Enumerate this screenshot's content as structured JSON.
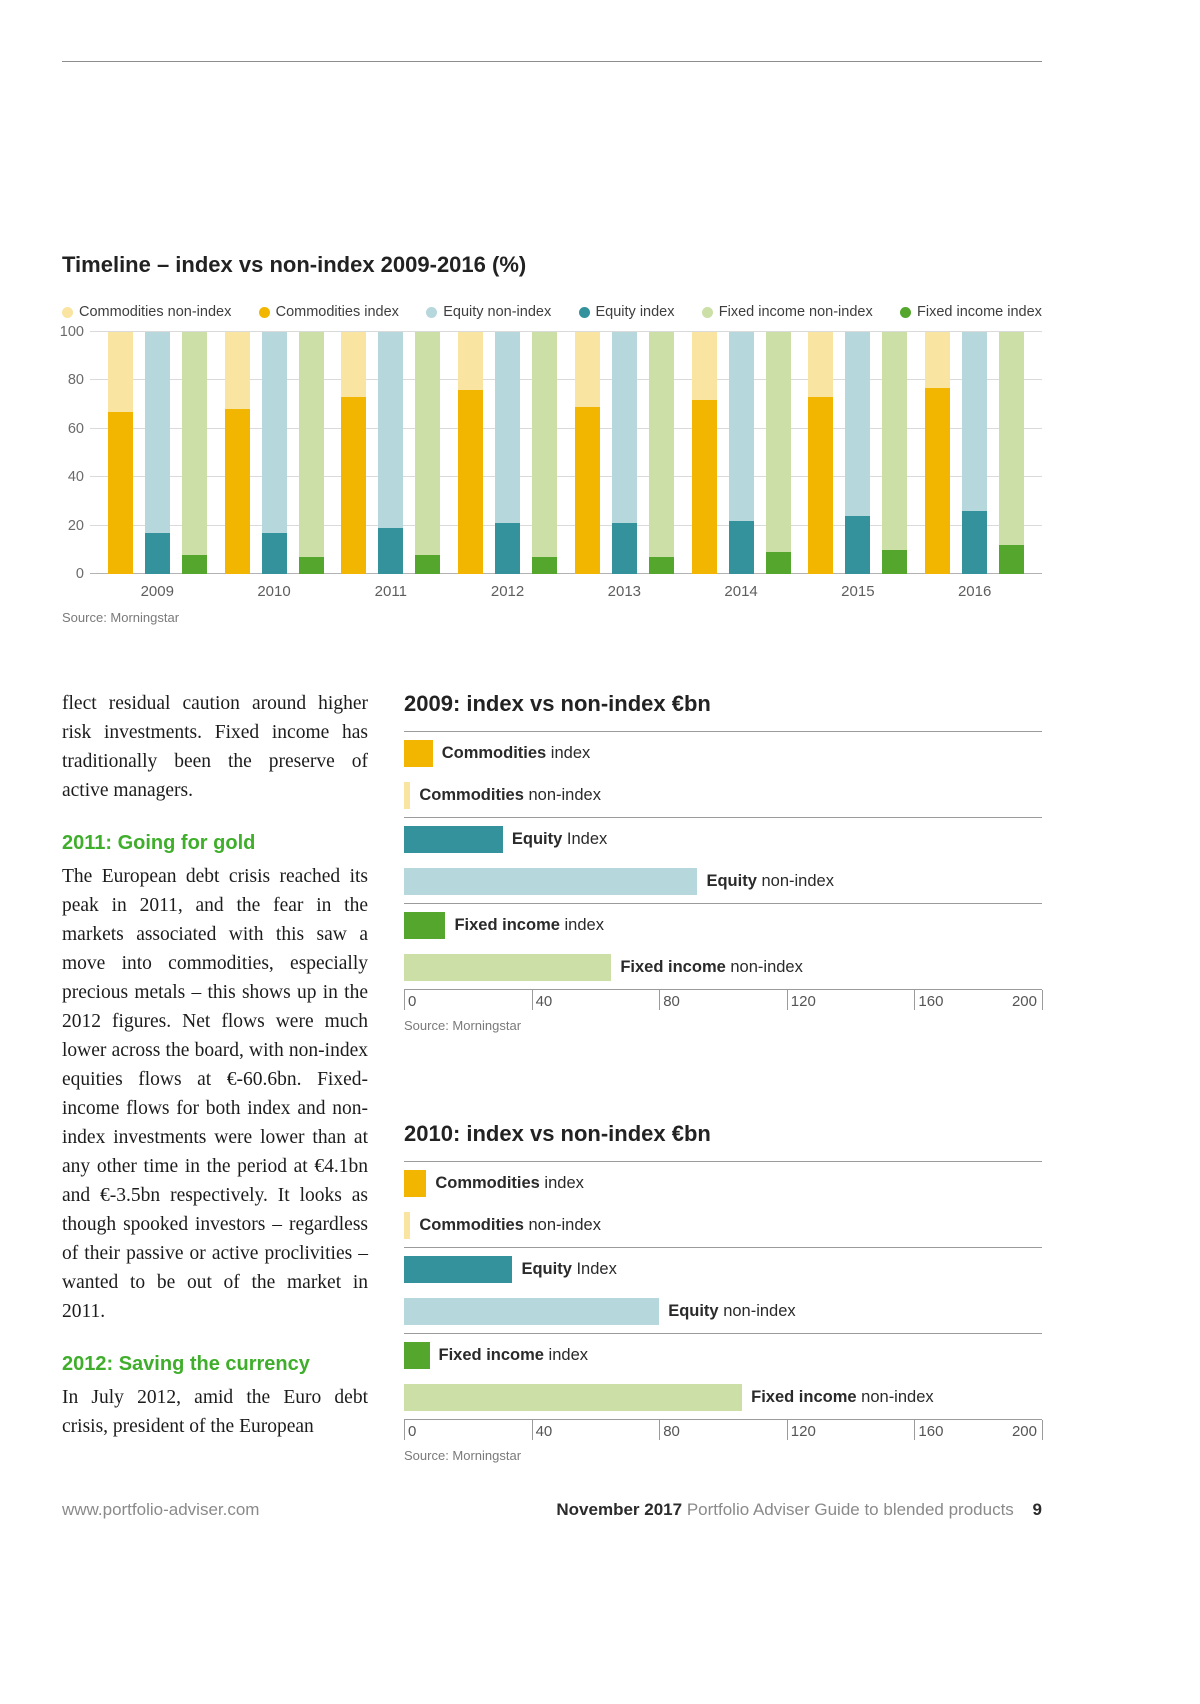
{
  "colors": {
    "commodities_nonindex": "#FAE4A1",
    "commodities_index": "#F2B600",
    "equity_nonindex": "#B6D7DB",
    "equity_index": "#33929B",
    "fixed_income_nonindex": "#CBDFA7",
    "fixed_income_index": "#55A62D",
    "heading_green": "#3FAE2B"
  },
  "timeline_section": {
    "title": "Timeline – index vs non-index 2009-2016 (%)",
    "source": "Source: Morningstar",
    "legend": [
      {
        "label": "Commodities non-index",
        "color_key": "commodities_nonindex"
      },
      {
        "label": "Commodities index",
        "color_key": "commodities_index"
      },
      {
        "label": "Equity non-index",
        "color_key": "equity_nonindex"
      },
      {
        "label": "Equity index",
        "color_key": "equity_index"
      },
      {
        "label": "Fixed income non-index",
        "color_key": "fixed_income_nonindex"
      },
      {
        "label": "Fixed income index",
        "color_key": "fixed_income_index"
      }
    ]
  },
  "article": {
    "intro_paragraph": "flect residual caution around higher risk investments. Fixed income has traditionally been the preserve of active managers.",
    "sections": [
      {
        "heading": "2011: Going for gold",
        "body": "The European debt crisis reached its peak in 2011, and the fear in the markets associated with this saw a move into commodities, especially precious metals – this shows up in the 2012 figures. Net flows were much lower across the board, with non-index equities flows at €-60.6bn. Fixed-income flows for both index and non-index investments were lower than at any other time in the period at €4.1bn and €-3.5bn respectively. It looks as though spooked investors – regardless of their passive or active proclivities – wanted to be out of the market in 2011."
      },
      {
        "heading": "2012: Saving the currency",
        "body": "In July 2012, amid the Euro debt crisis, president of the European"
      }
    ]
  },
  "footer": {
    "website": "www.portfolio-adviser.com",
    "issue": "November 2017",
    "publication": "Portfolio Adviser Guide to blended products",
    "page_number": "9"
  },
  "chart_data": [
    {
      "type": "bar",
      "variant": "stacked-100pct-grouped",
      "title": "Timeline – index vs non-index 2009-2016 (%)",
      "source": "Source: Morningstar",
      "categories": [
        "2009",
        "2010",
        "2011",
        "2012",
        "2013",
        "2014",
        "2015",
        "2016"
      ],
      "ylim": [
        0,
        100
      ],
      "y_ticks": [
        100,
        80,
        60,
        40,
        20,
        0
      ],
      "grid": true,
      "legend_position": "top",
      "groups": [
        {
          "name": "Commodities",
          "slug": "commodities",
          "index_series": "Commodities index",
          "nonindex_series": "Commodities non-index",
          "index_color_key": "commodities_index",
          "nonindex_color_key": "commodities_nonindex",
          "index_values": [
            67,
            68,
            73,
            76,
            69,
            72,
            73,
            77
          ],
          "nonindex_values": [
            33,
            32,
            27,
            24,
            31,
            28,
            27,
            23
          ]
        },
        {
          "name": "Equity",
          "slug": "equity",
          "index_series": "Equity index",
          "nonindex_series": "Equity non-index",
          "index_color_key": "equity_index",
          "nonindex_color_key": "equity_nonindex",
          "index_values": [
            17,
            17,
            19,
            21,
            21,
            22,
            24,
            26
          ],
          "nonindex_values": [
            83,
            83,
            81,
            79,
            79,
            78,
            76,
            74
          ]
        },
        {
          "name": "Fixed income",
          "slug": "fixed-income",
          "index_series": "Fixed income index",
          "nonindex_series": "Fixed income non-index",
          "index_color_key": "fixed_income_index",
          "nonindex_color_key": "fixed_income_nonindex",
          "index_values": [
            8,
            7,
            8,
            7,
            7,
            9,
            10,
            12
          ],
          "nonindex_values": [
            92,
            93,
            92,
            93,
            93,
            91,
            90,
            88
          ]
        }
      ]
    },
    {
      "type": "bar",
      "variant": "horizontal",
      "title": "2009: index vs non-index €bn",
      "source": "Source: Morningstar",
      "unit": "€bn",
      "xlim": [
        0,
        200
      ],
      "x_ticks": [
        0,
        40,
        80,
        120,
        160,
        200
      ],
      "bars": [
        {
          "slug": "commodities-index",
          "label_bold": "Commodities",
          "label_rest": "index",
          "value": 9,
          "color_key": "commodities_index",
          "group_start": true
        },
        {
          "slug": "commodities-nonindex",
          "label_bold": "Commodities",
          "label_rest": "non-index",
          "value": 2,
          "color_key": "commodities_nonindex",
          "group_start": false
        },
        {
          "slug": "equity-index",
          "label_bold": "Equity",
          "label_rest": "Index",
          "value": 31,
          "color_key": "equity_index",
          "group_start": true
        },
        {
          "slug": "equity-nonindex",
          "label_bold": "Equity",
          "label_rest": "non-index",
          "value": 92,
          "color_key": "equity_nonindex",
          "group_start": false
        },
        {
          "slug": "fixed-income-index",
          "label_bold": "Fixed income",
          "label_rest": "index",
          "value": 13,
          "color_key": "fixed_income_index",
          "group_start": true
        },
        {
          "slug": "fixed-income-nonindex",
          "label_bold": "Fixed income",
          "label_rest": "non-index",
          "value": 65,
          "color_key": "fixed_income_nonindex",
          "group_start": false
        }
      ]
    },
    {
      "type": "bar",
      "variant": "horizontal",
      "title": "2010: index vs non-index €bn",
      "source": "Source: Morningstar",
      "unit": "€bn",
      "xlim": [
        0,
        200
      ],
      "x_ticks": [
        0,
        40,
        80,
        120,
        160,
        200
      ],
      "bars": [
        {
          "slug": "commodities-index",
          "label_bold": "Commodities",
          "label_rest": "index",
          "value": 7,
          "color_key": "commodities_index",
          "group_start": true
        },
        {
          "slug": "commodities-nonindex",
          "label_bold": "Commodities",
          "label_rest": "non-index",
          "value": 2,
          "color_key": "commodities_nonindex",
          "group_start": false
        },
        {
          "slug": "equity-index",
          "label_bold": "Equity",
          "label_rest": "Index",
          "value": 34,
          "color_key": "equity_index",
          "group_start": true
        },
        {
          "slug": "equity-nonindex",
          "label_bold": "Equity",
          "label_rest": "non-index",
          "value": 80,
          "color_key": "equity_nonindex",
          "group_start": false
        },
        {
          "slug": "fixed-income-index",
          "label_bold": "Fixed income",
          "label_rest": "index",
          "value": 8,
          "color_key": "fixed_income_index",
          "group_start": true
        },
        {
          "slug": "fixed-income-nonindex",
          "label_bold": "Fixed income",
          "label_rest": "non-index",
          "value": 106,
          "color_key": "fixed_income_nonindex",
          "group_start": false
        }
      ]
    }
  ]
}
